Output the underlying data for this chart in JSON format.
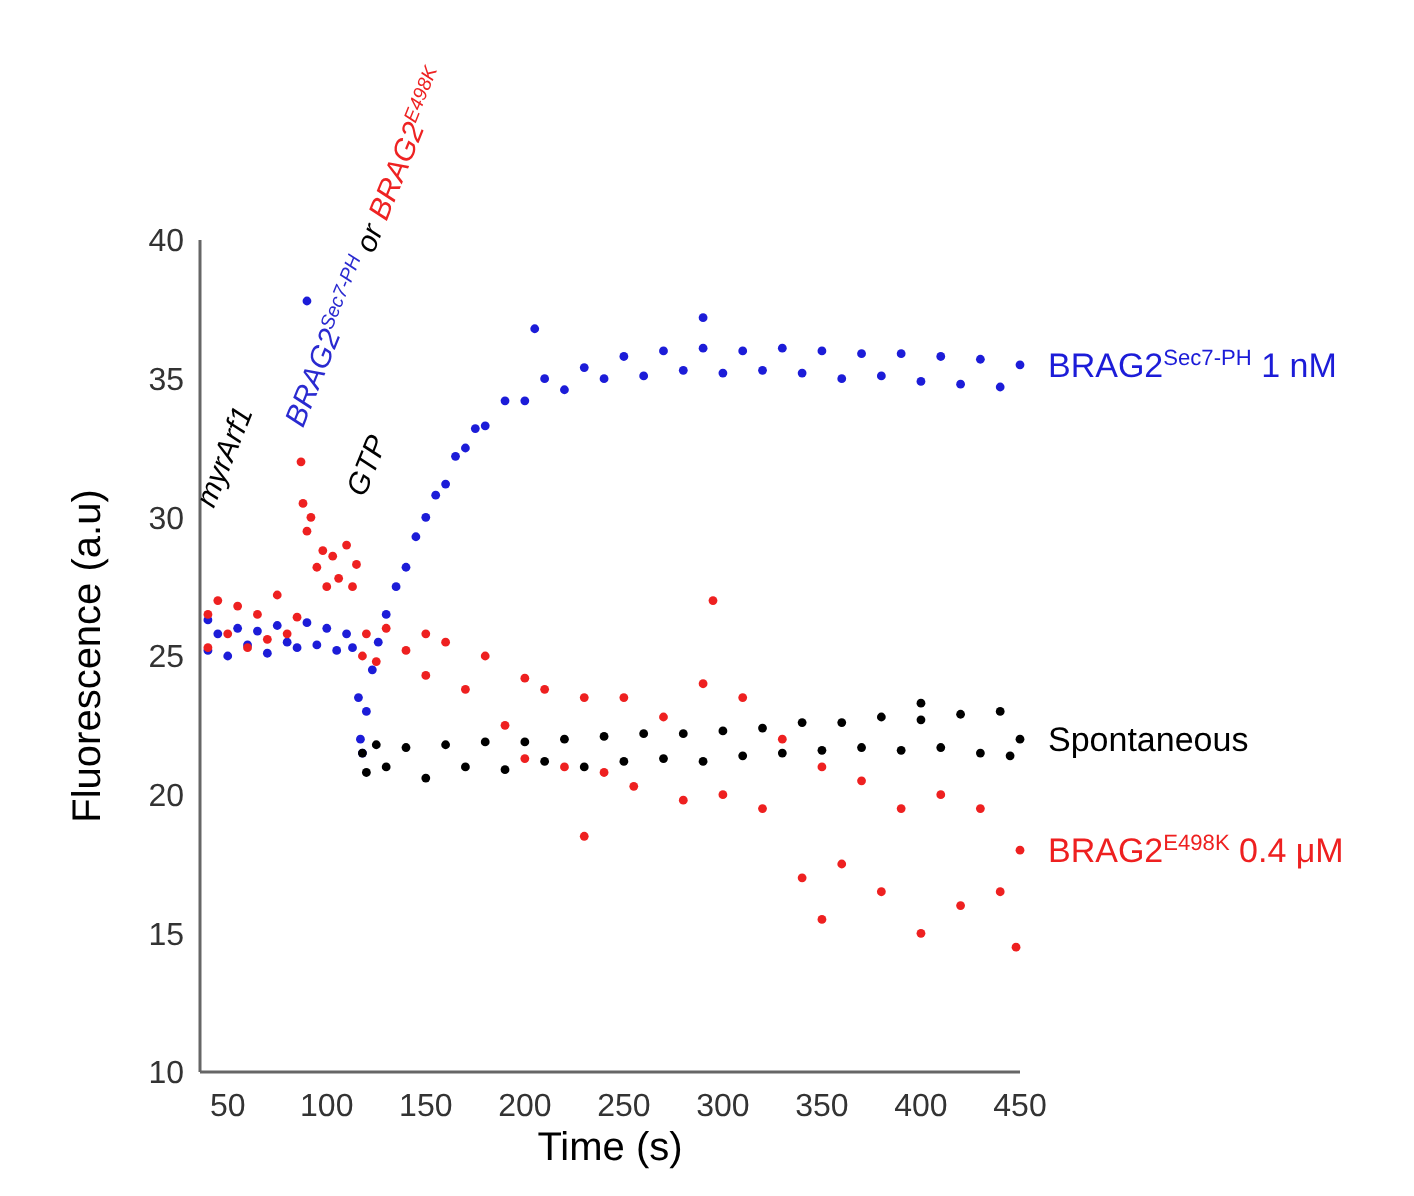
{
  "chart_data": {
    "type": "scatter",
    "xlabel": "Time (s)",
    "ylabel": "Fluorescence (a.u)",
    "xlim": [
      36,
      450
    ],
    "ylim": [
      10,
      40
    ],
    "xticks": [
      50,
      100,
      150,
      200,
      250,
      300,
      350,
      400,
      450
    ],
    "yticks": [
      10,
      15,
      20,
      25,
      30,
      35,
      40
    ],
    "grid": false,
    "marker": "circle",
    "series": [
      {
        "name": "BRAG2$^{Sec7-PH}$ 1 nM",
        "color": "#1c1cd8",
        "x": [
          40,
          40,
          45,
          50,
          55,
          60,
          65,
          70,
          75,
          80,
          85,
          90,
          95,
          100,
          105,
          110,
          113,
          116,
          117,
          118,
          120,
          123,
          126,
          130,
          135,
          140,
          145,
          150,
          155,
          160,
          165,
          170,
          175,
          180,
          190,
          200,
          210,
          220,
          230,
          240,
          250,
          260,
          270,
          280,
          290,
          300,
          310,
          320,
          330,
          340,
          350,
          360,
          370,
          380,
          390,
          400,
          410,
          420,
          430,
          440,
          450,
          205,
          290,
          90
        ],
        "values": [
          25.2,
          26.3,
          25.8,
          25.0,
          26.0,
          25.4,
          25.9,
          25.1,
          26.1,
          25.5,
          25.3,
          26.2,
          25.4,
          26.0,
          25.2,
          25.8,
          25.3,
          23.5,
          22.0,
          21.5,
          23.0,
          24.5,
          25.5,
          26.5,
          27.5,
          28.2,
          29.3,
          30.0,
          30.8,
          31.2,
          32.2,
          32.5,
          33.2,
          33.3,
          34.2,
          34.2,
          35.0,
          34.6,
          35.4,
          35.0,
          35.8,
          35.1,
          36.0,
          35.3,
          36.1,
          35.2,
          36.0,
          35.3,
          36.1,
          35.2,
          36.0,
          35.0,
          35.9,
          35.1,
          35.9,
          34.9,
          35.8,
          34.8,
          35.7,
          34.7,
          35.5,
          36.8,
          37.2,
          37.8
        ]
      },
      {
        "name": "Spontaneous",
        "color": "#000000",
        "x": [
          118,
          120,
          125,
          130,
          140,
          150,
          160,
          170,
          180,
          190,
          200,
          210,
          220,
          230,
          240,
          250,
          260,
          270,
          280,
          290,
          300,
          310,
          320,
          330,
          340,
          350,
          360,
          370,
          380,
          390,
          400,
          410,
          420,
          430,
          440,
          445,
          400,
          450
        ],
        "values": [
          21.5,
          20.8,
          21.8,
          21.0,
          21.7,
          20.6,
          21.8,
          21.0,
          21.9,
          20.9,
          21.9,
          21.2,
          22.0,
          21.0,
          22.1,
          21.2,
          22.2,
          21.3,
          22.2,
          21.2,
          22.3,
          21.4,
          22.4,
          21.5,
          22.6,
          21.6,
          22.6,
          21.7,
          22.8,
          21.6,
          22.7,
          21.7,
          22.9,
          21.5,
          23.0,
          21.4,
          23.3,
          22.0
        ]
      },
      {
        "name": "BRAG2$^{E498K}$ 0.4 μM",
        "color": "#ee2020",
        "x": [
          40,
          40,
          45,
          50,
          55,
          60,
          65,
          70,
          75,
          80,
          85,
          87,
          88,
          90,
          92,
          95,
          98,
          100,
          103,
          106,
          110,
          113,
          115,
          118,
          120,
          125,
          130,
          140,
          150,
          150,
          160,
          170,
          180,
          190,
          200,
          200,
          210,
          220,
          230,
          240,
          250,
          255,
          270,
          280,
          290,
          295,
          300,
          310,
          320,
          330,
          340,
          350,
          360,
          370,
          380,
          390,
          400,
          410,
          420,
          430,
          440,
          448,
          230,
          350,
          450
        ],
        "values": [
          26.5,
          25.3,
          27.0,
          25.8,
          26.8,
          25.3,
          26.5,
          25.6,
          27.2,
          25.8,
          26.4,
          32.0,
          30.5,
          29.5,
          30.0,
          28.2,
          28.8,
          27.5,
          28.6,
          27.8,
          29.0,
          27.5,
          28.3,
          25.0,
          25.8,
          24.8,
          26.0,
          25.2,
          25.8,
          24.3,
          25.5,
          23.8,
          25.0,
          22.5,
          24.2,
          21.3,
          23.8,
          21.0,
          23.5,
          20.8,
          23.5,
          20.3,
          22.8,
          19.8,
          24.0,
          27.0,
          20.0,
          23.5,
          19.5,
          22.0,
          17.0,
          21.0,
          17.5,
          20.5,
          16.5,
          19.5,
          15.0,
          20.0,
          16.0,
          19.5,
          16.5,
          14.5,
          18.5,
          15.5,
          18.0
        ]
      }
    ],
    "annotations": [
      "myrArf1",
      "BRAG2$^{Sec7-PH}$",
      "or",
      "BRAG2$^{E498K}$",
      "GTP"
    ]
  }
}
